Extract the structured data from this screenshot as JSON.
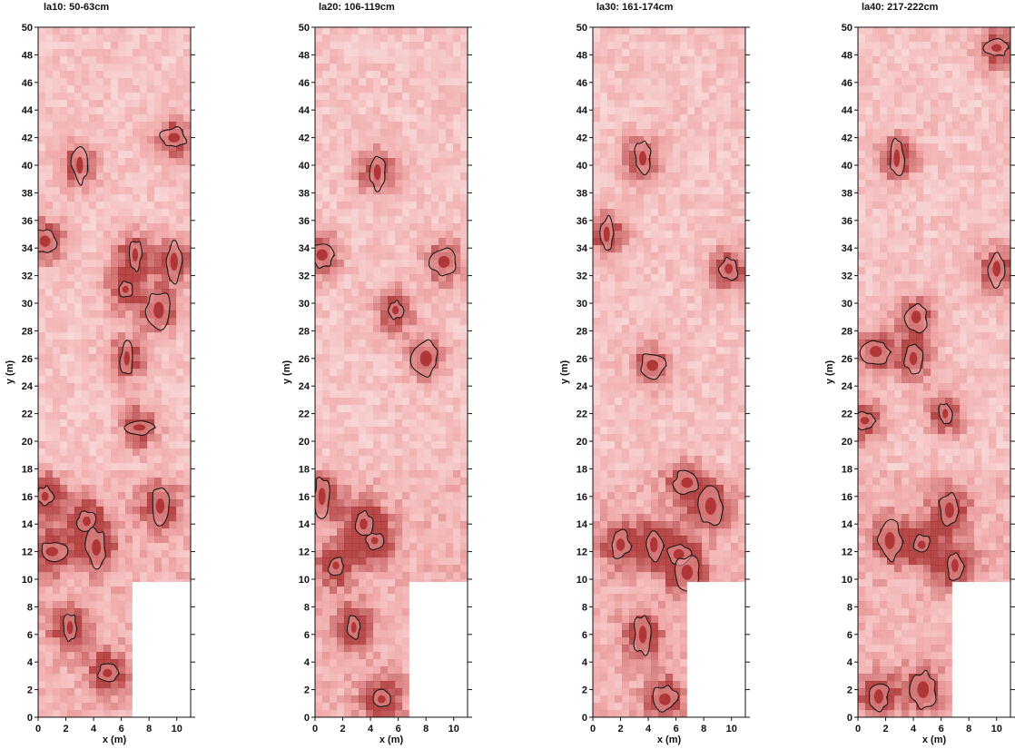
{
  "chart_data": [
    {
      "type": "heatmap",
      "title": "la10: 50-63cm",
      "xlabel": "x (m)",
      "ylabel": "y (m)",
      "xlim": [
        0,
        11
      ],
      "ylim": [
        0,
        50
      ],
      "x_ticks": [
        "0",
        "2",
        "4",
        "6",
        "8",
        "10"
      ],
      "y_ticks": [
        "0",
        "2",
        "4",
        "6",
        "8",
        "10",
        "12",
        "14",
        "16",
        "18",
        "20",
        "22",
        "24",
        "26",
        "28",
        "30",
        "32",
        "34",
        "36",
        "38",
        "40",
        "42",
        "44",
        "46",
        "48",
        "50"
      ],
      "no_data_region": {
        "x": [
          6.8,
          11
        ],
        "y": [
          0,
          9.8
        ]
      },
      "high_anomalies": [
        {
          "x": 3.0,
          "y": 40.0
        },
        {
          "x": 0.5,
          "y": 34.5
        },
        {
          "x": 7.0,
          "y": 33.5
        },
        {
          "x": 9.8,
          "y": 33.0
        },
        {
          "x": 8.7,
          "y": 29.5
        },
        {
          "x": 6.3,
          "y": 31.0
        },
        {
          "x": 3.5,
          "y": 14.2
        },
        {
          "x": 4.2,
          "y": 12.3
        },
        {
          "x": 1.0,
          "y": 12.0
        },
        {
          "x": 2.3,
          "y": 6.5
        },
        {
          "x": 5.0,
          "y": 3.2
        },
        {
          "x": 0.5,
          "y": 16.0
        },
        {
          "x": 9.8,
          "y": 42.0
        },
        {
          "x": 8.8,
          "y": 15.3
        },
        {
          "x": 6.4,
          "y": 26.0
        },
        {
          "x": 7.3,
          "y": 21.0
        }
      ]
    },
    {
      "type": "heatmap",
      "title": "la20: 106-119cm",
      "xlabel": "x (m)",
      "ylabel": "y (m)",
      "xlim": [
        0,
        11
      ],
      "ylim": [
        0,
        50
      ],
      "x_ticks": [
        "0",
        "2",
        "4",
        "6",
        "8",
        "10"
      ],
      "y_ticks": [
        "0",
        "2",
        "4",
        "6",
        "8",
        "10",
        "12",
        "14",
        "16",
        "18",
        "20",
        "22",
        "24",
        "26",
        "28",
        "30",
        "32",
        "34",
        "36",
        "38",
        "40",
        "42",
        "44",
        "46",
        "48",
        "50"
      ],
      "no_data_region": {
        "x": [
          6.8,
          11
        ],
        "y": [
          0,
          9.8
        ]
      },
      "high_anomalies": [
        {
          "x": 4.5,
          "y": 39.5
        },
        {
          "x": 0.5,
          "y": 33.5
        },
        {
          "x": 4.3,
          "y": 12.8
        },
        {
          "x": 3.5,
          "y": 14.0
        },
        {
          "x": 1.5,
          "y": 11.0
        },
        {
          "x": 2.8,
          "y": 6.5
        },
        {
          "x": 4.8,
          "y": 1.3
        },
        {
          "x": 5.8,
          "y": 29.5
        },
        {
          "x": 8.0,
          "y": 26.0
        },
        {
          "x": 0.5,
          "y": 16.0
        },
        {
          "x": 9.3,
          "y": 33.0
        }
      ]
    },
    {
      "type": "heatmap",
      "title": "la30: 161-174cm",
      "xlabel": "x (m)",
      "ylabel": "y (m)",
      "xlim": [
        0,
        11
      ],
      "ylim": [
        0,
        50
      ],
      "x_ticks": [
        "0",
        "2",
        "4",
        "6",
        "8",
        "10"
      ],
      "y_ticks": [
        "0",
        "2",
        "4",
        "6",
        "8",
        "10",
        "12",
        "14",
        "16",
        "18",
        "20",
        "22",
        "24",
        "26",
        "28",
        "30",
        "32",
        "34",
        "36",
        "38",
        "40",
        "42",
        "44",
        "46",
        "48",
        "50"
      ],
      "no_data_region": {
        "x": [
          6.8,
          11
        ],
        "y": [
          0,
          9.8
        ]
      },
      "high_anomalies": [
        {
          "x": 3.6,
          "y": 40.5
        },
        {
          "x": 4.3,
          "y": 25.5
        },
        {
          "x": 2.0,
          "y": 12.5
        },
        {
          "x": 4.4,
          "y": 12.5
        },
        {
          "x": 6.2,
          "y": 11.8
        },
        {
          "x": 6.8,
          "y": 10.5
        },
        {
          "x": 3.6,
          "y": 6.0
        },
        {
          "x": 5.2,
          "y": 1.3
        },
        {
          "x": 6.8,
          "y": 17.0
        },
        {
          "x": 9.8,
          "y": 32.5
        },
        {
          "x": 1.0,
          "y": 35.0
        },
        {
          "x": 8.5,
          "y": 15.3
        }
      ]
    },
    {
      "type": "heatmap",
      "title": "la40: 217-222cm",
      "xlabel": "x (m)",
      "ylabel": "y (m)",
      "xlim": [
        0,
        11
      ],
      "ylim": [
        0,
        50
      ],
      "x_ticks": [
        "0",
        "2",
        "4",
        "6",
        "8",
        "10"
      ],
      "y_ticks": [
        "0",
        "2",
        "4",
        "6",
        "8",
        "10",
        "12",
        "14",
        "16",
        "18",
        "20",
        "22",
        "24",
        "26",
        "28",
        "30",
        "32",
        "34",
        "36",
        "38",
        "40",
        "42",
        "44",
        "46",
        "48",
        "50"
      ],
      "no_data_region": {
        "x": [
          6.8,
          11
        ],
        "y": [
          0,
          9.8
        ]
      },
      "high_anomalies": [
        {
          "x": 4.0,
          "y": 26.0
        },
        {
          "x": 1.3,
          "y": 26.5
        },
        {
          "x": 2.3,
          "y": 12.8
        },
        {
          "x": 4.6,
          "y": 12.5
        },
        {
          "x": 7.0,
          "y": 11.0
        },
        {
          "x": 10.0,
          "y": 48.5
        },
        {
          "x": 10.0,
          "y": 32.5
        },
        {
          "x": 6.6,
          "y": 15.0
        },
        {
          "x": 4.7,
          "y": 2.0
        },
        {
          "x": 1.5,
          "y": 1.5
        },
        {
          "x": 0.5,
          "y": 21.5
        },
        {
          "x": 6.3,
          "y": 22.0
        },
        {
          "x": 4.2,
          "y": 29.0
        },
        {
          "x": 2.8,
          "y": 40.5
        }
      ]
    }
  ],
  "colors": {
    "low": "#fbecec",
    "mid": "#efa0a0",
    "high": "#a92b2b",
    "contour": "#1a1a1a",
    "no_data": "#ffffff"
  }
}
